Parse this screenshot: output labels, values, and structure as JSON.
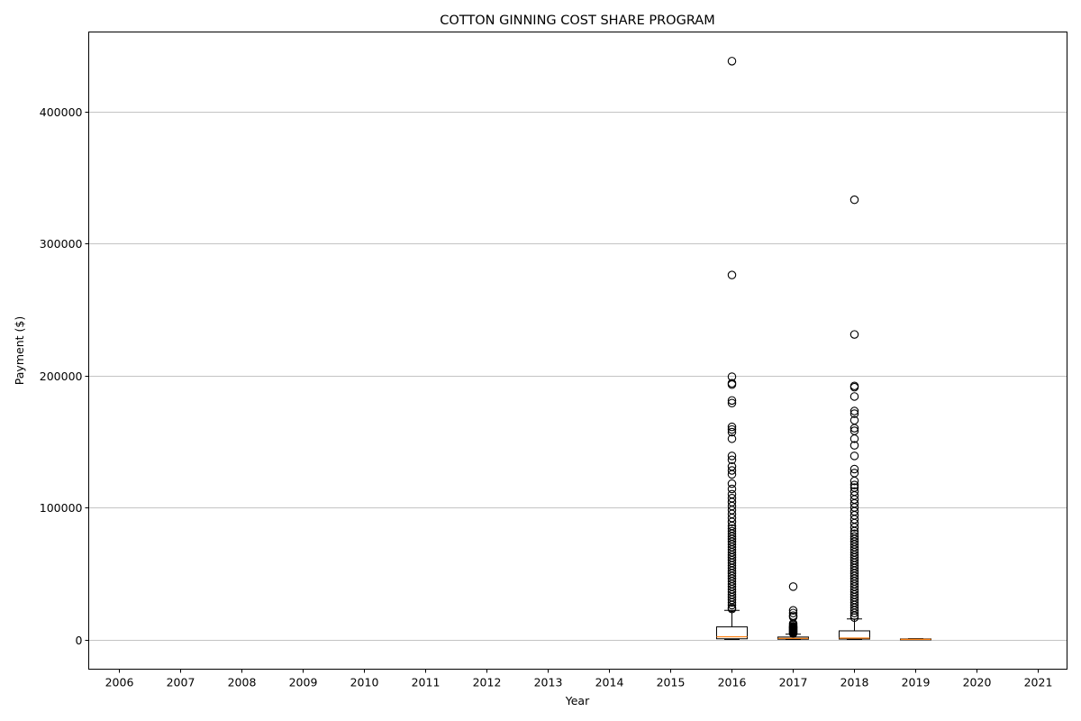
{
  "chart_data": {
    "type": "box",
    "title": "COTTON GINNING COST SHARE PROGRAM",
    "xlabel": "Year",
    "ylabel": "Payment ($)",
    "categories": [
      "2006",
      "2007",
      "2008",
      "2009",
      "2010",
      "2011",
      "2012",
      "2013",
      "2014",
      "2015",
      "2016",
      "2017",
      "2018",
      "2019",
      "2020",
      "2021"
    ],
    "ylim": [
      -22000,
      460000
    ],
    "yticks": [
      0,
      100000,
      200000,
      300000,
      400000
    ],
    "grid": "y-major",
    "legend": "none",
    "colors": {
      "box": "#000000",
      "median": "#ff7f0e",
      "grid": "#b0b0b0",
      "flier": "#000000"
    },
    "boxes": [
      {
        "year": "2016",
        "min": 0,
        "q1": 500,
        "median": 2000,
        "q3": 9500,
        "max": 22000,
        "outliers_sample": [
          438000,
          276000,
          199000,
          194000,
          193000,
          181000,
          179000,
          161000,
          159000,
          157000,
          152000,
          139000,
          136000,
          131000,
          128000,
          125000,
          118000,
          114000,
          110000,
          107000,
          104000,
          101000,
          98000,
          95000,
          92000,
          89000,
          86000,
          84000,
          82000,
          80000,
          78000,
          76000,
          74000,
          72000,
          70000,
          68000,
          66000,
          64000,
          62000,
          60000,
          58000,
          56000,
          54000,
          52000,
          50000,
          48000,
          46000,
          44000,
          42000,
          40000,
          38000,
          36000,
          34000,
          32000,
          30000,
          28000,
          26000,
          24000,
          23000
        ]
      },
      {
        "year": "2017",
        "min": 0,
        "q1": 200,
        "median": 800,
        "q3": 1800,
        "max": 4000,
        "outliers_sample": [
          40000,
          22000,
          20000,
          18000,
          17000,
          12000,
          11000,
          10000,
          9500,
          9000,
          8500,
          8000,
          7500,
          7000,
          6500,
          6000,
          5500,
          5000,
          4500
        ]
      },
      {
        "year": "2018",
        "min": 0,
        "q1": 300,
        "median": 1000,
        "q3": 6500,
        "max": 15500,
        "outliers_sample": [
          333000,
          231000,
          192000,
          191000,
          184000,
          173000,
          171000,
          166000,
          160000,
          158000,
          152000,
          147000,
          139000,
          129000,
          126000,
          120000,
          117000,
          115000,
          112000,
          109000,
          106000,
          103000,
          100000,
          97000,
          94000,
          91000,
          88000,
          85000,
          82000,
          80000,
          78000,
          76000,
          74000,
          72000,
          70000,
          68000,
          66000,
          64000,
          62000,
          60000,
          58000,
          56000,
          54000,
          52000,
          50000,
          48000,
          46000,
          44000,
          42000,
          40000,
          38000,
          36000,
          34000,
          32000,
          30000,
          28000,
          26000,
          24000,
          22000,
          20000,
          18000,
          16500
        ]
      },
      {
        "year": "2019",
        "min": 0,
        "q1": 0,
        "median": 100,
        "q3": 400,
        "max": 600,
        "outliers_sample": []
      }
    ]
  }
}
